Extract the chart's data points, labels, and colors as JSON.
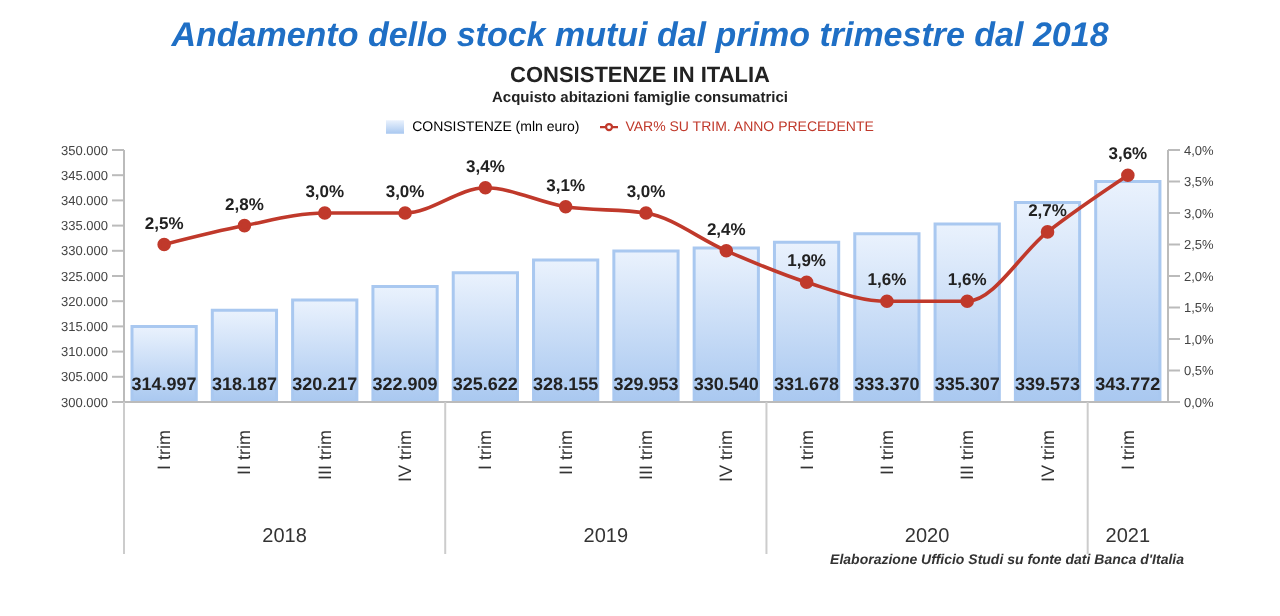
{
  "chart_data": {
    "type": "bar",
    "title": "Andamento dello stock mutui dal primo trimestre dal 2018",
    "subtitle": "CONSISTENZE IN ITALIA",
    "annotations": [
      "Acquisto abitazioni famiglie consumatrici",
      "Elaborazione Ufficio Studi su fonte dati Banca d'Italia",
      "2018",
      "2019",
      "2020",
      "2021"
    ],
    "categories": [
      "I trim",
      "II trim",
      "III trim",
      "IV trim",
      "I trim",
      "II trim",
      "III trim",
      "IV trim",
      "I trim",
      "II trim",
      "III trim",
      "IV trim",
      "I trim"
    ],
    "series": [
      {
        "name": "CONSISTENZE (mln euro)",
        "color": "#a9c8f0",
        "values": [
          314997,
          318187,
          320217,
          322909,
          325622,
          328155,
          329953,
          330540,
          331678,
          333370,
          335307,
          339573,
          343772
        ],
        "value_labels": [
          "314.997",
          "318.187",
          "320.217",
          "322.909",
          "325.622",
          "328.155",
          "329.953",
          "330.540",
          "331.678",
          "333.370",
          "335.307",
          "339.573",
          "343.772"
        ]
      },
      {
        "name": "VAR% SU TRIM. ANNO PRECEDENTE",
        "type": "line",
        "axis": "y2",
        "color": "#c0392b",
        "marker": "circle",
        "values": [
          2.5,
          2.8,
          3.0,
          3.0,
          3.4,
          3.1,
          3.0,
          2.4,
          1.9,
          1.6,
          1.6,
          2.7,
          3.6
        ],
        "value_labels": [
          "2,5%",
          "2,8%",
          "3,0%",
          "3,0%",
          "3,4%",
          "3,1%",
          "3,0%",
          "2,4%",
          "1,9%",
          "1,6%",
          "1,6%",
          "2,7%",
          "3,6%"
        ]
      }
    ],
    "ylim": [
      300000,
      350000
    ],
    "yticks": [
      {
        "value": 300000,
        "label": "300.000"
      },
      {
        "value": 305000,
        "label": "305.000"
      },
      {
        "value": 310000,
        "label": "310.000"
      },
      {
        "value": 315000,
        "label": "315.000"
      },
      {
        "value": 320000,
        "label": "320.000"
      },
      {
        "value": 325000,
        "label": "325.000"
      },
      {
        "value": 330000,
        "label": "330.000"
      },
      {
        "value": 335000,
        "label": "335.000"
      },
      {
        "value": 340000,
        "label": "340.000"
      },
      {
        "value": 345000,
        "label": "345.000"
      },
      {
        "value": 350000,
        "label": "350.000"
      }
    ],
    "y2lim": [
      0,
      4
    ],
    "y2ticks": [
      {
        "value": 0,
        "label": "0,0%"
      },
      {
        "value": 0.5,
        "label": "0,5%"
      },
      {
        "value": 1,
        "label": "1,0%"
      },
      {
        "value": 1.5,
        "label": "1,5%"
      },
      {
        "value": 2,
        "label": "2,0%"
      },
      {
        "value": 2.5,
        "label": "2,5%"
      },
      {
        "value": 3,
        "label": "3,0%"
      },
      {
        "value": 3.5,
        "label": "3,5%"
      },
      {
        "value": 4,
        "label": "4,0%"
      }
    ],
    "legend": "top",
    "grid": false
  }
}
